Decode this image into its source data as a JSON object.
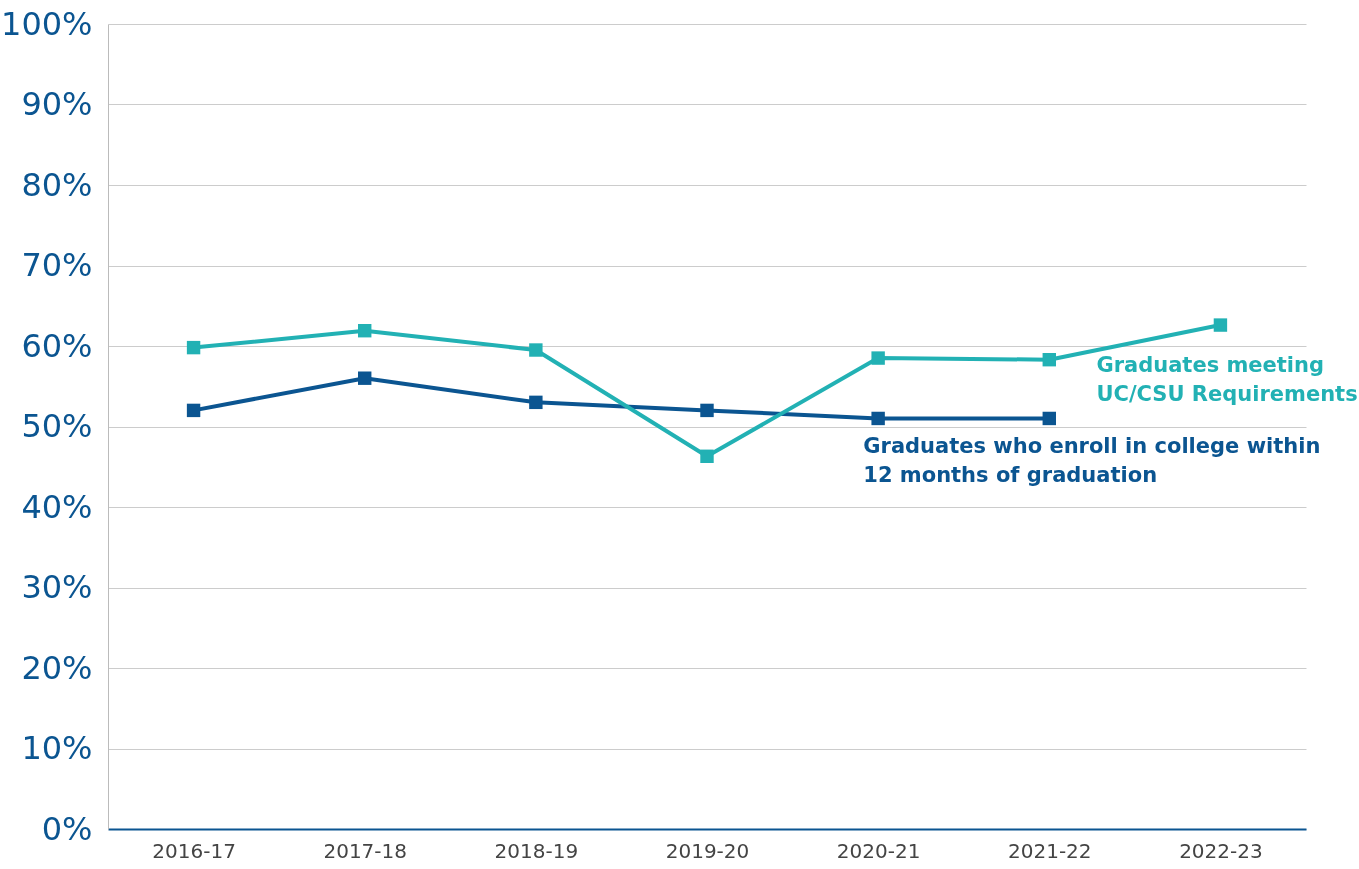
{
  "chart_data": {
    "type": "line",
    "categories": [
      "2016-17",
      "2017-18",
      "2018-19",
      "2019-20",
      "2020-21",
      "2021-22",
      "2022-23"
    ],
    "series": [
      {
        "name": "Graduates who enroll in college within 12 months of graduation",
        "color": "#0b5591",
        "values": [
          52,
          56,
          53,
          52,
          51,
          51,
          null
        ]
      },
      {
        "name": "Graduates meeting UC/CSU Requirements",
        "color": "#22b1b4",
        "values": [
          59.8,
          61.9,
          59.5,
          46.3,
          58.5,
          58.3,
          62.6
        ]
      }
    ],
    "ylim": [
      0,
      100
    ],
    "yticks": [
      {
        "value": 0,
        "label": "0%"
      },
      {
        "value": 10,
        "label": "10%"
      },
      {
        "value": 20,
        "label": "20%"
      },
      {
        "value": 30,
        "label": "30%"
      },
      {
        "value": 40,
        "label": "40%"
      },
      {
        "value": 50,
        "label": "50%"
      },
      {
        "value": 60,
        "label": "60%"
      },
      {
        "value": 70,
        "label": "70%"
      },
      {
        "value": 80,
        "label": "80%"
      },
      {
        "value": 90,
        "label": "90%"
      },
      {
        "value": 100,
        "label": "100%"
      }
    ],
    "grid": "y",
    "legend": false,
    "marker": "square",
    "line_style": "solid"
  }
}
